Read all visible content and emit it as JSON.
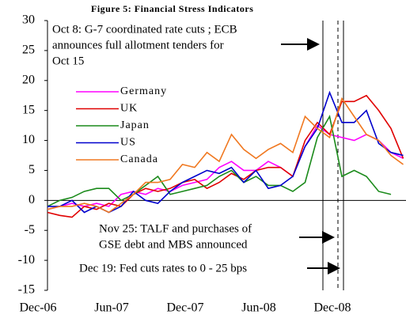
{
  "chart_data": {
    "type": "line",
    "title": "Figure 5: Financial Stress Indicators",
    "categories": [
      "Dec-06",
      null,
      null,
      null,
      null,
      null,
      "Jun-07",
      null,
      null,
      null,
      null,
      null,
      "Dec-07",
      null,
      null,
      null,
      null,
      null,
      "Jun-08",
      null,
      null,
      null,
      null,
      null,
      "Dec-08",
      null,
      null,
      null,
      null,
      null
    ],
    "series": [
      {
        "name": "Germany",
        "color": "#ff00ff",
        "values": [
          -1.5,
          -1,
          -0.5,
          -1,
          -0.5,
          -1,
          1,
          1.5,
          1,
          2,
          1.5,
          2.5,
          3,
          3.5,
          5.5,
          6.5,
          5,
          5,
          6.5,
          5.5,
          4,
          9,
          12.5,
          11,
          10.5,
          10,
          11,
          10,
          8,
          7
        ]
      },
      {
        "name": "UK",
        "color": "#e00000",
        "values": [
          -2,
          -2.5,
          -2.8,
          -1,
          -1.5,
          -0.5,
          -1,
          1,
          2,
          1.5,
          2,
          3,
          3.5,
          2,
          3,
          4.5,
          3.5,
          5,
          5.5,
          5.5,
          4,
          10,
          13,
          11,
          16.5,
          16.5,
          17.5,
          15,
          12,
          7
        ]
      },
      {
        "name": "Japan",
        "color": "#1a8a1a",
        "values": [
          -1,
          0,
          0.5,
          1.5,
          2,
          2,
          0,
          1,
          2.5,
          4,
          1,
          1.5,
          2,
          2.5,
          4,
          5,
          3,
          4,
          2.5,
          2.5,
          1.5,
          3,
          10.5,
          14,
          4,
          5,
          4,
          1.5,
          1,
          null
        ]
      },
      {
        "name": "US",
        "color": "#0000cc",
        "values": [
          -1,
          -1,
          0,
          -2,
          -1,
          -2,
          -1,
          1.5,
          0,
          -0.5,
          1.5,
          3,
          4,
          5,
          4.5,
          5.5,
          3,
          5,
          2,
          2.5,
          4,
          9,
          12,
          18,
          13,
          13,
          15,
          9.5,
          8,
          7.5
        ]
      },
      {
        "name": "Canada",
        "color": "#f07820",
        "values": [
          -1.5,
          -1,
          -1,
          -0.5,
          -1,
          -2,
          -0.5,
          1,
          3,
          3,
          3.5,
          6,
          5.5,
          8,
          6.5,
          11,
          8.5,
          7,
          8.5,
          9.5,
          8,
          14,
          12,
          10.5,
          17,
          14,
          11,
          10,
          7.5,
          6
        ]
      }
    ],
    "ylim": [
      -15,
      30
    ],
    "yticks": [
      -15,
      -10,
      -5,
      0,
      5,
      10,
      15,
      20,
      25,
      30
    ],
    "annotations": [
      "Oct 8: G-7 coordinated rate cuts ; ECB",
      "announces full allotment tenders for",
      "Oct 15",
      "Nov 25: TALF and purchases of",
      "GSE debt and MBS announced",
      "Dec 19: Fed cuts rates to 0 - 25 bps"
    ]
  }
}
